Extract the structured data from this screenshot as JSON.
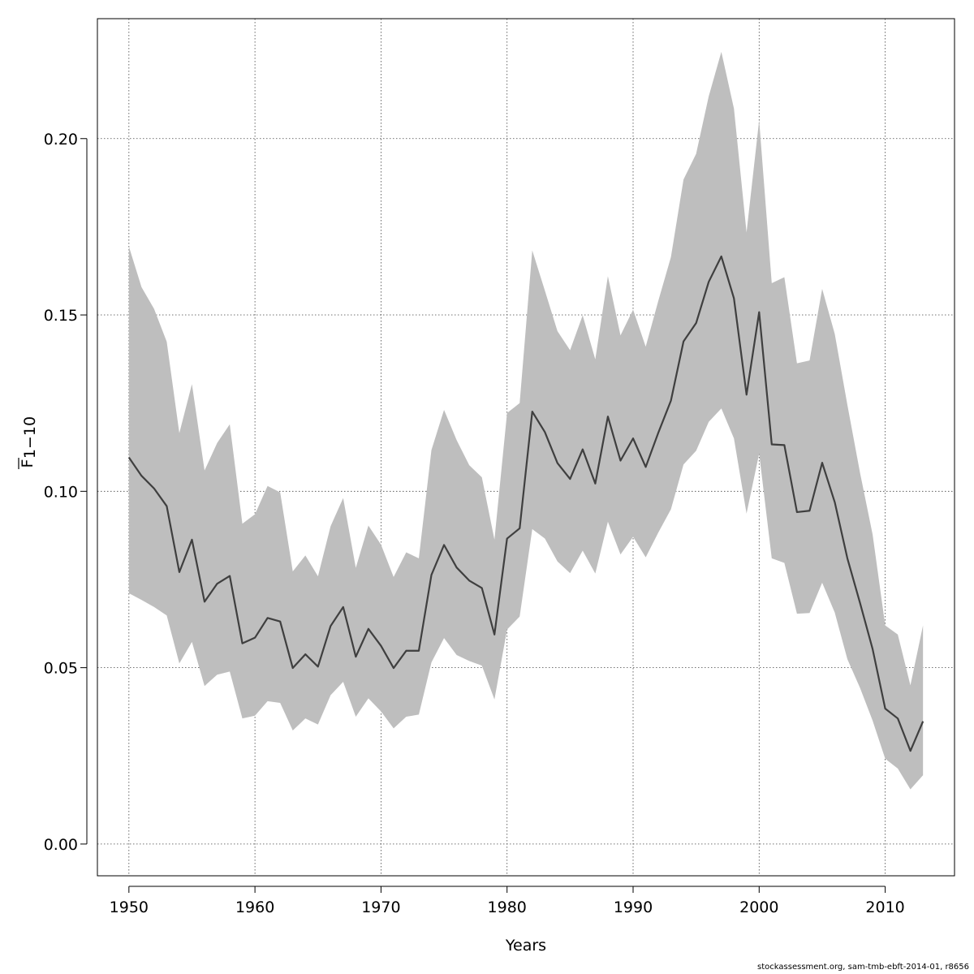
{
  "chart_data": {
    "type": "line",
    "title": "",
    "xlabel": "Years",
    "ylabel": "F̄ 1−10",
    "ylabel_main": "F",
    "ylabel_sub": "1−10",
    "xlim": [
      1947.5,
      2015.5
    ],
    "ylim": [
      -0.009,
      0.234
    ],
    "xticks": [
      1950,
      1960,
      1970,
      1980,
      1990,
      2000,
      2010
    ],
    "yticks": [
      "0.00",
      "0.05",
      "0.10",
      "0.15",
      "0.20"
    ],
    "grid": true,
    "x": [
      1950,
      1951,
      1952,
      1953,
      1954,
      1955,
      1956,
      1957,
      1958,
      1959,
      1960,
      1961,
      1962,
      1963,
      1964,
      1965,
      1966,
      1967,
      1968,
      1969,
      1970,
      1971,
      1972,
      1973,
      1974,
      1975,
      1976,
      1977,
      1978,
      1979,
      1980,
      1981,
      1982,
      1983,
      1984,
      1985,
      1986,
      1987,
      1988,
      1989,
      1990,
      1991,
      1992,
      1993,
      1994,
      1995,
      1996,
      1997,
      1998,
      1999,
      2000,
      2001,
      2002,
      2003,
      2004,
      2005,
      2006,
      2007,
      2008,
      2009,
      2010,
      2011,
      2012,
      2013
    ],
    "series": [
      {
        "values": [
          0.1096,
          0.1044,
          0.1008,
          0.0958,
          0.0771,
          0.0863,
          0.0687,
          0.0738,
          0.076,
          0.0569,
          0.0585,
          0.0641,
          0.0631,
          0.0499,
          0.0538,
          0.0503,
          0.0618,
          0.0672,
          0.0531,
          0.061,
          0.0562,
          0.0499,
          0.0548,
          0.0548,
          0.0763,
          0.0848,
          0.0784,
          0.0747,
          0.0726,
          0.0594,
          0.0866,
          0.0895,
          0.1226,
          0.1168,
          0.108,
          0.1035,
          0.1119,
          0.1022,
          0.1212,
          0.1087,
          0.115,
          0.1069,
          0.1166,
          0.1257,
          0.1425,
          0.1477,
          0.1594,
          0.1666,
          0.1547,
          0.1274,
          0.1508,
          0.1133,
          0.1131,
          0.0941,
          0.0945,
          0.1081,
          0.0969,
          0.081,
          0.0684,
          0.0553,
          0.0384,
          0.0356,
          0.0264,
          0.0348
        ],
        "lower": [
          0.0711,
          0.0692,
          0.0672,
          0.0648,
          0.0512,
          0.0573,
          0.0448,
          0.048,
          0.0489,
          0.0356,
          0.0364,
          0.0405,
          0.04,
          0.0322,
          0.0356,
          0.0339,
          0.0422,
          0.046,
          0.0361,
          0.0413,
          0.0376,
          0.0328,
          0.0361,
          0.0367,
          0.0515,
          0.0584,
          0.0536,
          0.0519,
          0.0506,
          0.041,
          0.0608,
          0.0645,
          0.0893,
          0.0866,
          0.0801,
          0.0768,
          0.0832,
          0.0767,
          0.0914,
          0.0821,
          0.0871,
          0.0813,
          0.0883,
          0.0949,
          0.1076,
          0.1115,
          0.1197,
          0.1235,
          0.115,
          0.0937,
          0.1107,
          0.081,
          0.0797,
          0.0653,
          0.0655,
          0.0741,
          0.0656,
          0.0524,
          0.0443,
          0.035,
          0.0242,
          0.0214,
          0.0155,
          0.0195
        ],
        "upper": [
          0.1694,
          0.1579,
          0.1517,
          0.1424,
          0.1165,
          0.1304,
          0.1059,
          0.1137,
          0.119,
          0.0908,
          0.0935,
          0.1015,
          0.0997,
          0.0773,
          0.0818,
          0.0759,
          0.0901,
          0.0981,
          0.0783,
          0.0903,
          0.0849,
          0.0757,
          0.0827,
          0.081,
          0.1117,
          0.1231,
          0.1145,
          0.1074,
          0.104,
          0.0863,
          0.1222,
          0.125,
          0.1683,
          0.1569,
          0.1454,
          0.14,
          0.1499,
          0.1374,
          0.161,
          0.1442,
          0.1515,
          0.141,
          0.154,
          0.1664,
          0.1884,
          0.1957,
          0.212,
          0.2246,
          0.2085,
          0.1734,
          0.2052,
          0.159,
          0.1607,
          0.1363,
          0.1371,
          0.1574,
          0.1446,
          0.1245,
          0.1053,
          0.0878,
          0.062,
          0.0594,
          0.045,
          0.062
        ]
      }
    ]
  },
  "footer": "stockassessment.org, sam-tmb-ebft-2014-01, r8656",
  "colors": {
    "band": "#bebebe",
    "line": "#3f3f3f",
    "grid": "#444444",
    "axis": "#000000"
  }
}
